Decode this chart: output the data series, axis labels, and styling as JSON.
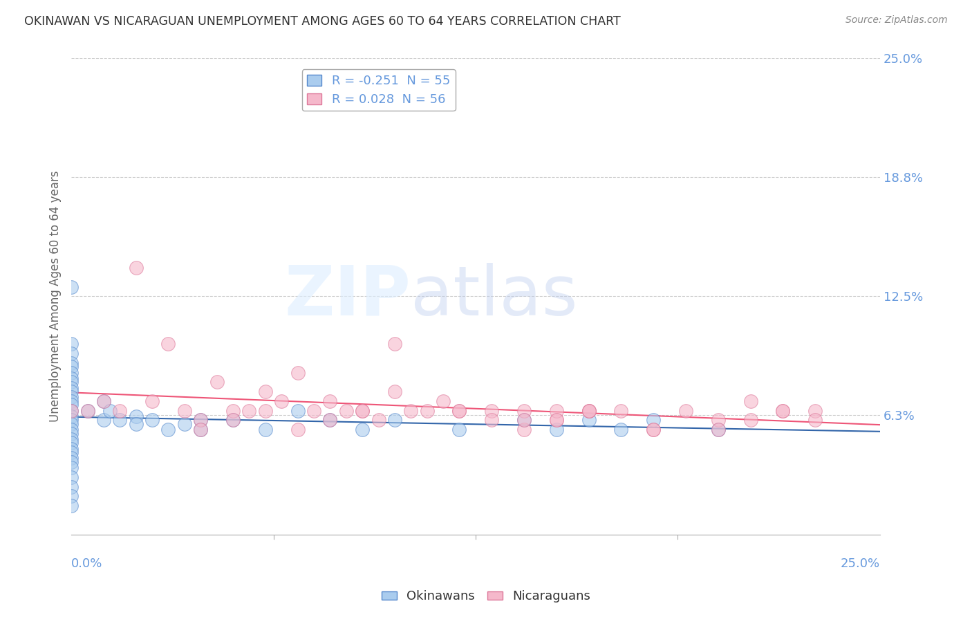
{
  "title": "OKINAWAN VS NICARAGUAN UNEMPLOYMENT AMONG AGES 60 TO 64 YEARS CORRELATION CHART",
  "source": "Source: ZipAtlas.com",
  "ylabel": "Unemployment Among Ages 60 to 64 years",
  "xlim": [
    0.0,
    0.25
  ],
  "ylim": [
    0.0,
    0.25
  ],
  "okinawan_R": -0.251,
  "okinawan_N": 55,
  "nicaraguan_R": 0.028,
  "nicaraguan_N": 56,
  "okinawan_color": "#aaccee",
  "okinawan_edge": "#5588cc",
  "nicaraguan_color": "#f5b8cb",
  "nicaraguan_edge": "#dd7799",
  "trendline_okinawan": "#3366aa",
  "trendline_nicaraguan": "#ee5577",
  "background_color": "#ffffff",
  "grid_color": "#cccccc",
  "title_color": "#333333",
  "axis_label_color": "#6699dd",
  "watermark_zip": "ZIP",
  "watermark_atlas": "atlas",
  "okinawan_x": [
    0.0,
    0.0,
    0.0,
    0.0,
    0.0,
    0.0,
    0.0,
    0.0,
    0.0,
    0.0,
    0.0,
    0.0,
    0.0,
    0.0,
    0.0,
    0.0,
    0.0,
    0.0,
    0.0,
    0.0,
    0.0,
    0.0,
    0.0,
    0.0,
    0.0,
    0.0,
    0.0,
    0.0,
    0.0,
    0.0,
    0.005,
    0.01,
    0.01,
    0.012,
    0.015,
    0.02,
    0.02,
    0.025,
    0.03,
    0.035,
    0.04,
    0.04,
    0.05,
    0.06,
    0.07,
    0.08,
    0.09,
    0.1,
    0.12,
    0.14,
    0.15,
    0.16,
    0.17,
    0.18,
    0.2
  ],
  "okinawan_y": [
    0.13,
    0.1,
    0.095,
    0.09,
    0.088,
    0.085,
    0.082,
    0.08,
    0.077,
    0.075,
    0.072,
    0.07,
    0.068,
    0.065,
    0.062,
    0.06,
    0.058,
    0.055,
    0.053,
    0.05,
    0.048,
    0.045,
    0.043,
    0.04,
    0.038,
    0.035,
    0.03,
    0.025,
    0.02,
    0.015,
    0.065,
    0.07,
    0.06,
    0.065,
    0.06,
    0.062,
    0.058,
    0.06,
    0.055,
    0.058,
    0.06,
    0.055,
    0.06,
    0.055,
    0.065,
    0.06,
    0.055,
    0.06,
    0.055,
    0.06,
    0.055,
    0.06,
    0.055,
    0.06,
    0.055
  ],
  "nicaraguan_x": [
    0.0,
    0.005,
    0.01,
    0.015,
    0.02,
    0.025,
    0.03,
    0.035,
    0.04,
    0.045,
    0.05,
    0.055,
    0.06,
    0.065,
    0.07,
    0.075,
    0.08,
    0.085,
    0.09,
    0.095,
    0.1,
    0.105,
    0.11,
    0.115,
    0.12,
    0.13,
    0.14,
    0.15,
    0.16,
    0.17,
    0.18,
    0.19,
    0.2,
    0.21,
    0.22,
    0.23,
    0.14,
    0.16,
    0.18,
    0.2,
    0.21,
    0.22,
    0.23,
    0.1,
    0.12,
    0.13,
    0.14,
    0.15,
    0.15,
    0.16,
    0.04,
    0.05,
    0.06,
    0.07,
    0.08,
    0.09
  ],
  "nicaraguan_y": [
    0.065,
    0.065,
    0.07,
    0.065,
    0.14,
    0.07,
    0.1,
    0.065,
    0.06,
    0.08,
    0.065,
    0.065,
    0.075,
    0.07,
    0.085,
    0.065,
    0.07,
    0.065,
    0.065,
    0.06,
    0.075,
    0.065,
    0.065,
    0.07,
    0.065,
    0.065,
    0.055,
    0.06,
    0.065,
    0.065,
    0.055,
    0.065,
    0.06,
    0.07,
    0.065,
    0.065,
    0.065,
    0.065,
    0.055,
    0.055,
    0.06,
    0.065,
    0.06,
    0.1,
    0.065,
    0.06,
    0.06,
    0.065,
    0.06,
    0.065,
    0.055,
    0.06,
    0.065,
    0.055,
    0.06,
    0.065
  ]
}
